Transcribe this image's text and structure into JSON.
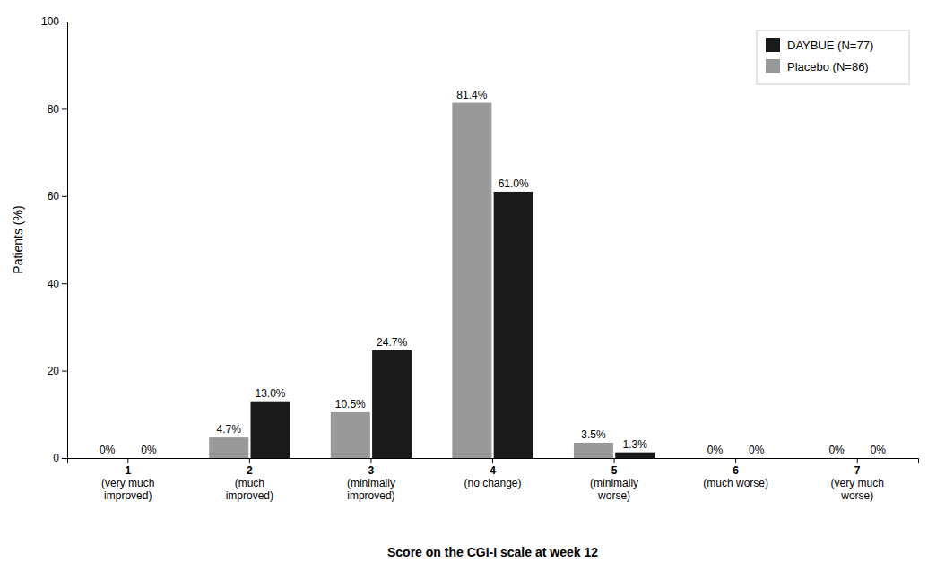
{
  "chart_data": {
    "type": "bar",
    "xlabel": "Score on the CGI-I scale at week 12",
    "ylabel": "Patients (%)",
    "categories": [
      "1\n(very much\nimproved)",
      "2\n(much\nimproved)",
      "3\n(minimally\nimproved)",
      "4\n(no change)",
      "5\n(minimally\nworse)",
      "6\n(much worse)",
      "7\n(very much\nworse)"
    ],
    "series": [
      {
        "name": "Placebo (N=86)",
        "color": "#999999",
        "values": [
          0.0,
          4.7,
          10.5,
          81.4,
          3.5,
          0.0,
          0.0
        ],
        "value_labels": [
          "0%",
          "4.7%",
          "10.5%",
          "81.4%",
          "3.5%",
          "0%",
          "0%"
        ]
      },
      {
        "name": "DAYBUE (N=77)",
        "color": "#1a1a1a",
        "values": [
          0.0,
          13.0,
          24.7,
          61.0,
          1.3,
          0.0,
          0.0
        ],
        "value_labels": [
          "0%",
          "13.0%",
          "24.7%",
          "61.0%",
          "1.3%",
          "0%",
          "0%"
        ]
      }
    ],
    "ylim": [
      0,
      100
    ],
    "yticks": [
      0,
      20,
      40,
      60,
      80,
      100
    ],
    "grid": false,
    "legend": "upper right",
    "data_labels": true
  }
}
